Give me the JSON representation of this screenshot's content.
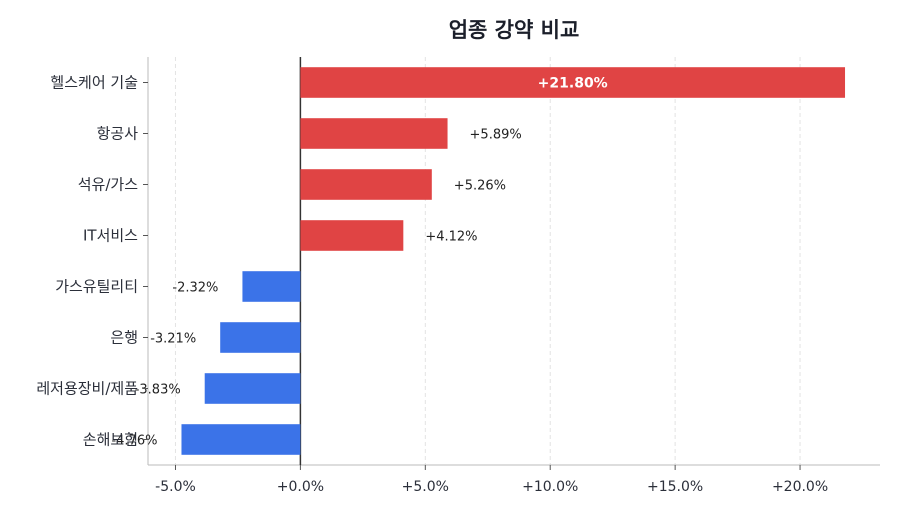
{
  "chart_data": {
    "type": "bar",
    "orientation": "horizontal",
    "title": "업종 강약 비교",
    "xlabel": "",
    "ylabel": "",
    "categories": [
      "헬스케어 기술",
      "항공사",
      "석유/가스",
      "IT서비스",
      "가스유틸리티",
      "은행",
      "레저용장비/제품",
      "손해보험"
    ],
    "values": [
      21.8,
      5.89,
      5.26,
      4.12,
      -2.32,
      -3.21,
      -3.83,
      -4.76
    ],
    "value_labels": [
      "+21.80%",
      "+5.89%",
      "+5.26%",
      "+4.12%",
      "-2.32%",
      "-3.21%",
      "-3.83%",
      "-4.76%"
    ],
    "xticks": [
      -5,
      0,
      5,
      10,
      15,
      20
    ],
    "xtick_labels": [
      "-5.0%",
      "+0.0%",
      "+5.0%",
      "+10.0%",
      "+15.0%",
      "+20.0%"
    ],
    "xlim": [
      -6.1,
      23.2
    ],
    "grid": "vertical dashed",
    "colors": {
      "positive": "#e04444",
      "negative": "#3b73e8",
      "zero_line": "#333333",
      "grid": "#e3e3e3",
      "axis": "#bbbbbb"
    }
  }
}
